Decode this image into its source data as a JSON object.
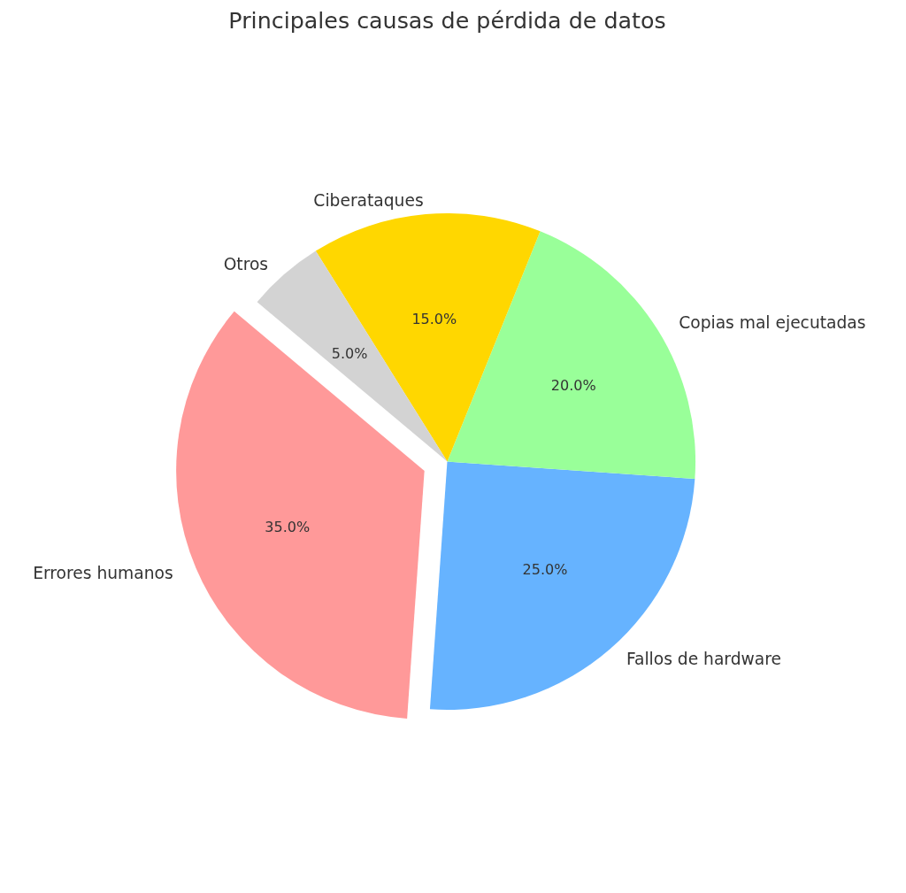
{
  "chart_data": {
    "type": "pie",
    "title": "Principales causas de pérdida de datos",
    "categories": [
      "Errores humanos",
      "Fallos de hardware",
      "Copias mal ejecutadas",
      "Ciberataques",
      "Otros"
    ],
    "values": [
      35,
      25,
      20,
      15,
      5
    ],
    "colors": [
      "#ff9999",
      "#66b3ff",
      "#99ff99",
      "#ffd700",
      "#d3d3d3"
    ],
    "value_labels": [
      "35.0%",
      "25.0%",
      "20.0%",
      "15.0%",
      "5.0%"
    ]
  }
}
